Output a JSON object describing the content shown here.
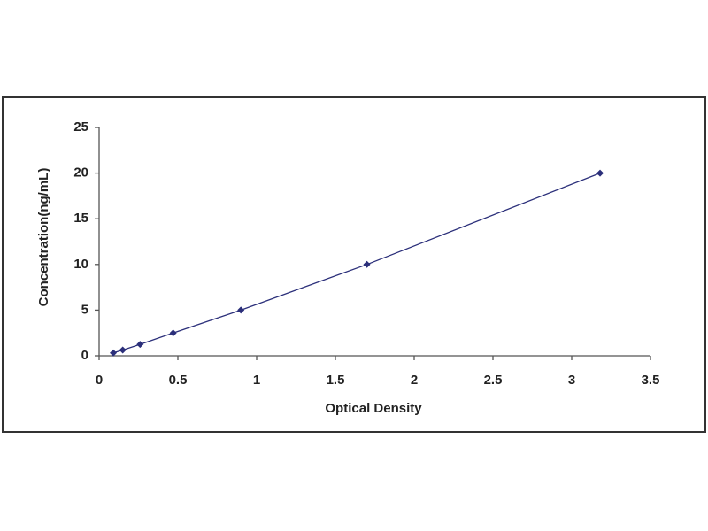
{
  "chart_data": {
    "type": "line",
    "marker": "diamond",
    "color": "#2b2f7a",
    "x_label": "Optical Density",
    "y_label": "Concentration(ng/mL)",
    "x": [
      0.09,
      0.15,
      0.26,
      0.47,
      0.9,
      1.7,
      3.18
    ],
    "values": [
      0.31,
      0.63,
      1.25,
      2.5,
      5,
      10,
      20
    ],
    "xlim": [
      0,
      3.5
    ],
    "xticks": [
      0,
      0.5,
      1,
      1.5,
      2,
      2.5,
      3,
      3.5
    ],
    "ylim": [
      0,
      25
    ],
    "yticks": [
      0,
      5,
      10,
      15,
      20,
      25
    ],
    "grid": false
  }
}
